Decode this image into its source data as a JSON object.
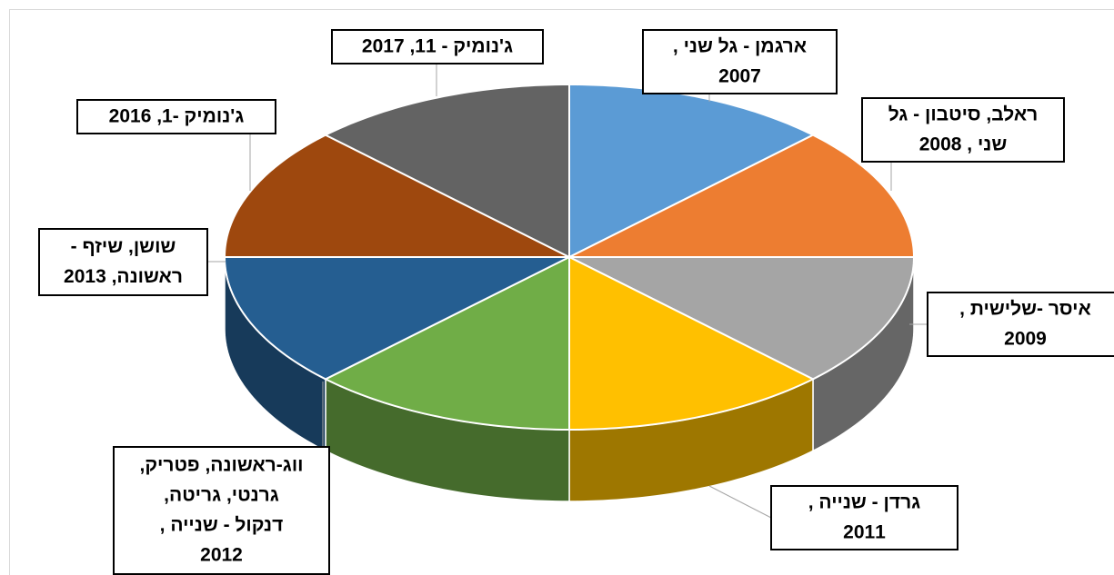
{
  "chart_data": {
    "type": "pie",
    "categories": [
      "ארגמן - גל שני ,\n2007",
      "ראלב, סיטבון - גל\nשני , 2008",
      "איסר -שלישית ,\n2009",
      "גרדן - שנייה ,\n2011",
      "ווג-ראשונה, פטריק,\nגרנטי, גריטה,\nדנקול - שנייה ,\n2012",
      "שושן, שיזף -\nראשונה, 2013",
      "ג'נומיק -1, 2016",
      "ג'נומיק - 11, 2017"
    ],
    "values": [
      12.5,
      12.5,
      12.5,
      12.5,
      12.5,
      12.5,
      12.5,
      12.5
    ],
    "colors": [
      "#5b9bd5",
      "#ed7d31",
      "#a5a5a5",
      "#ffc000",
      "#70ad47",
      "#255e91",
      "#9e480e",
      "#636363"
    ]
  }
}
